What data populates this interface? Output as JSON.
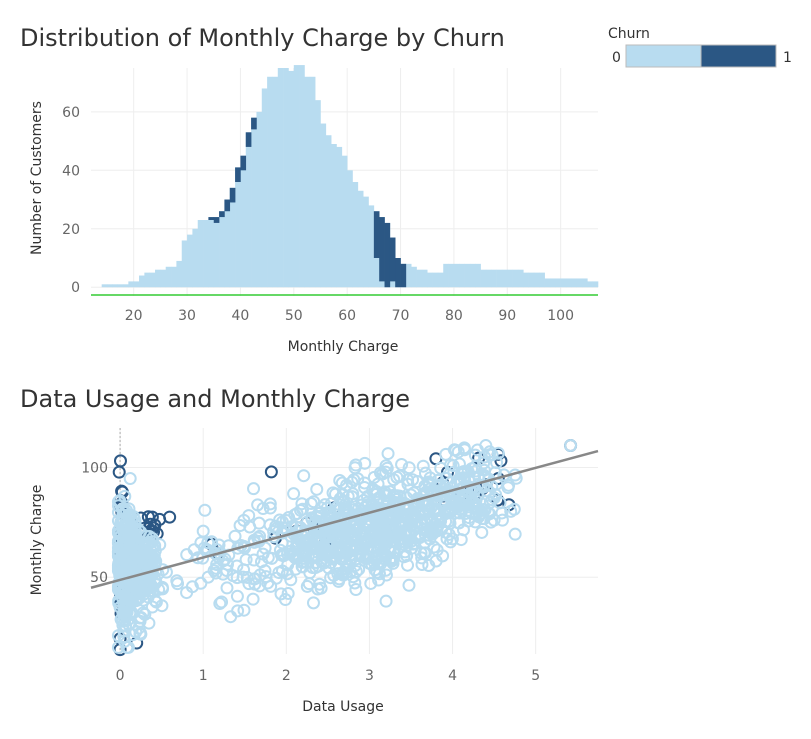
{
  "colors": {
    "churn_0": "#b8dcf0",
    "churn_1": "#2b5784",
    "trend": "#888888",
    "baseline": "#33cc33",
    "grid": "#eeeeee"
  },
  "legend": {
    "title": "Churn",
    "items": [
      {
        "label": "0",
        "color": "#b8dcf0"
      },
      {
        "label": "1",
        "color": "#2b5784"
      }
    ]
  },
  "chart_data": [
    {
      "type": "bar",
      "title": "Distribution of Monthly Charge by Churn",
      "xlabel": "Monthly Charge",
      "ylabel": "Number of Customers",
      "xlim": [
        12,
        107
      ],
      "ylim": [
        -3,
        75
      ],
      "x_ticks": [
        20,
        30,
        40,
        50,
        60,
        70,
        80,
        90,
        100
      ],
      "y_ticks": [
        0,
        20,
        40,
        60
      ],
      "bin_width": 1,
      "series": [
        {
          "name": "0",
          "x": [
            12,
            13,
            14,
            15,
            16,
            17,
            18,
            19,
            20,
            21,
            22,
            23,
            24,
            25,
            26,
            27,
            28,
            29,
            30,
            31,
            32,
            33,
            34,
            35,
            36,
            37,
            38,
            39,
            40,
            41,
            42,
            43,
            44,
            45,
            46,
            47,
            48,
            49,
            50,
            51,
            52,
            53,
            54,
            55,
            56,
            57,
            58,
            59,
            60,
            61,
            62,
            63,
            64,
            65,
            66,
            67,
            68,
            69,
            70,
            71,
            72,
            73,
            74,
            75,
            76,
            77,
            78,
            79,
            80,
            81,
            82,
            83,
            84,
            85,
            86,
            87,
            88,
            89,
            90,
            91,
            92,
            93,
            94,
            95,
            96,
            97,
            98,
            99,
            100,
            101,
            102,
            103,
            104,
            105,
            106
          ],
          "values": [
            0,
            0,
            1,
            1,
            1,
            1,
            1,
            2,
            2,
            4,
            5,
            5,
            6,
            6,
            7,
            7,
            9,
            16,
            18,
            20,
            23,
            23,
            24,
            24,
            26,
            30,
            34,
            41,
            45,
            53,
            58,
            60,
            68,
            72,
            72,
            75,
            75,
            74,
            76,
            76,
            72,
            72,
            64,
            56,
            52,
            49,
            48,
            45,
            40,
            36,
            33,
            31,
            28,
            26,
            24,
            22,
            17,
            10,
            8,
            8,
            7,
            6,
            6,
            5,
            5,
            5,
            8,
            8,
            8,
            8,
            8,
            8,
            8,
            6,
            6,
            6,
            6,
            6,
            6,
            6,
            6,
            5,
            5,
            5,
            5,
            3,
            3,
            3,
            3,
            3,
            3,
            3,
            3,
            2,
            2
          ]
        },
        {
          "name": "1",
          "x": [
            13,
            34,
            35,
            36,
            37,
            38,
            39,
            40,
            41,
            42,
            65,
            66,
            67,
            68,
            69,
            70
          ],
          "values": [
            2,
            1,
            2,
            2,
            4,
            5,
            5,
            5,
            5,
            4,
            16,
            22,
            22,
            15,
            11,
            10
          ]
        }
      ]
    },
    {
      "type": "scatter",
      "title": "Data Usage and Monthly Charge",
      "xlabel": "Data Usage",
      "ylabel": "Monthly Charge",
      "xlim": [
        -0.35,
        5.75
      ],
      "ylim": [
        15,
        118
      ],
      "x_ticks": [
        0,
        1,
        2,
        3,
        4,
        5
      ],
      "y_ticks": [
        50,
        100
      ],
      "trend_line": {
        "x": [
          -0.35,
          5.75
        ],
        "y": [
          45.2,
          107.5
        ]
      },
      "series": [
        {
          "name": "0",
          "clusters": [
            {
              "x_mean": 0.1,
              "x_sd": 0.08,
              "y_mean": 55,
              "y_sd": 13,
              "count": 350
            },
            {
              "x_mean": 0.33,
              "x_sd": 0.08,
              "y_mean": 53,
              "y_sd": 10,
              "count": 110
            },
            {
              "x_mean": 1.3,
              "x_sd": 0.3,
              "y_mean": 55,
              "y_sd": 9,
              "count": 60
            },
            {
              "x_mean": 2.5,
              "x_sd": 0.45,
              "y_mean": 66,
              "y_sd": 10,
              "count": 360
            },
            {
              "x_mean": 3.35,
              "x_sd": 0.38,
              "y_mean": 78,
              "y_sd": 10,
              "count": 360
            },
            {
              "x_mean": 4.2,
              "x_sd": 0.3,
              "y_mean": 89,
              "y_sd": 9,
              "count": 130
            }
          ],
          "points": [
            [
              5.42,
              110
            ],
            [
              4.7,
              80
            ],
            [
              4.6,
              76
            ],
            [
              4.5,
              76
            ],
            [
              4.4,
              110
            ],
            [
              4.3,
              108
            ],
            [
              1.6,
              40
            ],
            [
              1.33,
              32
            ],
            [
              1.2,
              38
            ],
            [
              0.8,
              43
            ],
            [
              0.25,
              24
            ],
            [
              1.0,
              71
            ]
          ]
        },
        {
          "name": "1",
          "clusters": [
            {
              "x_mean": 0.01,
              "x_sd": 0.01,
              "y_mean": 60,
              "y_sd": 13,
              "count": 70
            },
            {
              "x_mean": 0.35,
              "x_sd": 0.1,
              "y_mean": 72,
              "y_sd": 4,
              "count": 14
            },
            {
              "x_mean": 2.3,
              "x_sd": 0.6,
              "y_mean": 70,
              "y_sd": 6,
              "count": 12
            },
            {
              "x_mean": 4.1,
              "x_sd": 0.25,
              "y_mean": 92,
              "y_sd": 6,
              "count": 16
            }
          ],
          "points": [
            [
              1.82,
              98
            ],
            [
              5.42,
              110
            ],
            [
              4.55,
              95
            ],
            [
              4.55,
              106
            ],
            [
              3.8,
              104
            ],
            [
              0.0,
              85
            ],
            [
              0.0,
              17
            ],
            [
              0.0,
              22
            ],
            [
              0.2,
              20
            ],
            [
              0.25,
              77
            ],
            [
              1.1,
              65
            ]
          ]
        }
      ]
    }
  ]
}
